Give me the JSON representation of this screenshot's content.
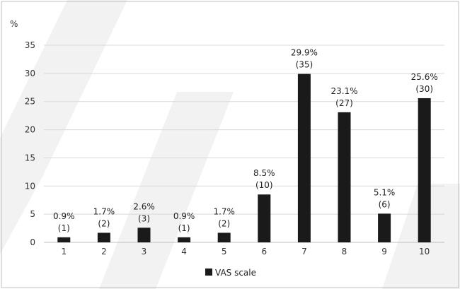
{
  "chart_data": {
    "type": "bar",
    "unit_label": "%",
    "categories": [
      "1",
      "2",
      "3",
      "4",
      "5",
      "6",
      "7",
      "8",
      "9",
      "10"
    ],
    "series": [
      {
        "name": "VAS scale",
        "values": [
          0.9,
          1.7,
          2.6,
          0.9,
          1.7,
          8.5,
          29.9,
          23.1,
          5.1,
          25.6
        ],
        "counts": [
          "(1)",
          "(2)",
          "(3)",
          "(1)",
          "(2)",
          "(10)",
          "(35)",
          "(27)",
          "(6)",
          "(30)"
        ],
        "percent_labels": [
          "0.9%",
          "1.7%",
          "2.6%",
          "0.9%",
          "1.7%",
          "8.5%",
          "29.9%",
          "23.1%",
          "5.1%",
          "25.6%"
        ]
      }
    ],
    "ylim": [
      0,
      35
    ],
    "yticks": [
      "0",
      "5",
      "10",
      "15",
      "20",
      "25",
      "30",
      "35"
    ],
    "grid": true,
    "legend": "bottom-center",
    "colors": {
      "bar": "#1a1a1a",
      "grid": "#d9d9d9",
      "border": "#bfbfbf",
      "watermark": "#f2f2f2"
    }
  }
}
